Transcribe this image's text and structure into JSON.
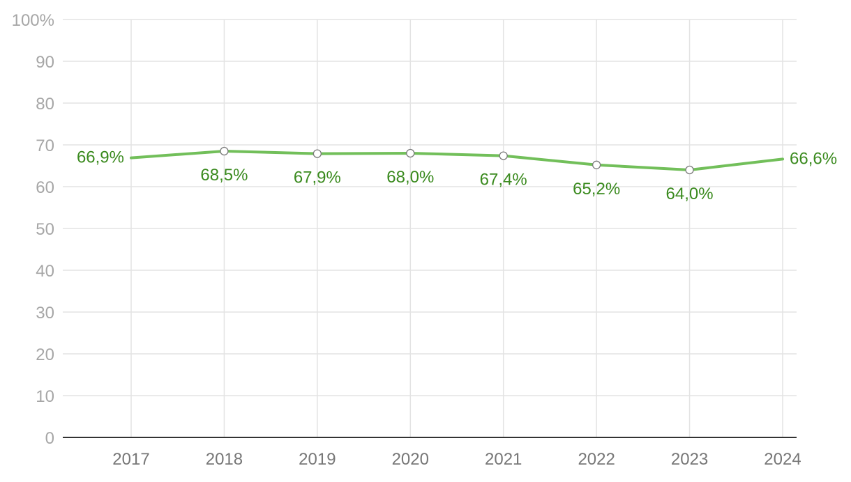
{
  "chart_data": {
    "type": "line",
    "x": [
      "2017",
      "2018",
      "2019",
      "2020",
      "2021",
      "2022",
      "2023",
      "2024"
    ],
    "series": [
      {
        "values": [
          66.9,
          68.5,
          67.9,
          68.0,
          67.4,
          65.2,
          64.0,
          66.6
        ],
        "labels": [
          "66,9%",
          "68,5%",
          "67,9%",
          "68,0%",
          "67,4%",
          "65,2%",
          "64,0%",
          "66,6%"
        ],
        "color": "#72bf5a",
        "label_color": "#3a8a1e"
      }
    ],
    "yticks": [
      0,
      10,
      20,
      30,
      40,
      50,
      60,
      70,
      80,
      90,
      100
    ],
    "ytick_labels": [
      "0",
      "10",
      "20",
      "30",
      "40",
      "50",
      "60",
      "70",
      "80",
      "90",
      "100%"
    ],
    "ylim": [
      0,
      100
    ],
    "grid": true,
    "title": "",
    "xlabel": "",
    "ylabel": ""
  }
}
